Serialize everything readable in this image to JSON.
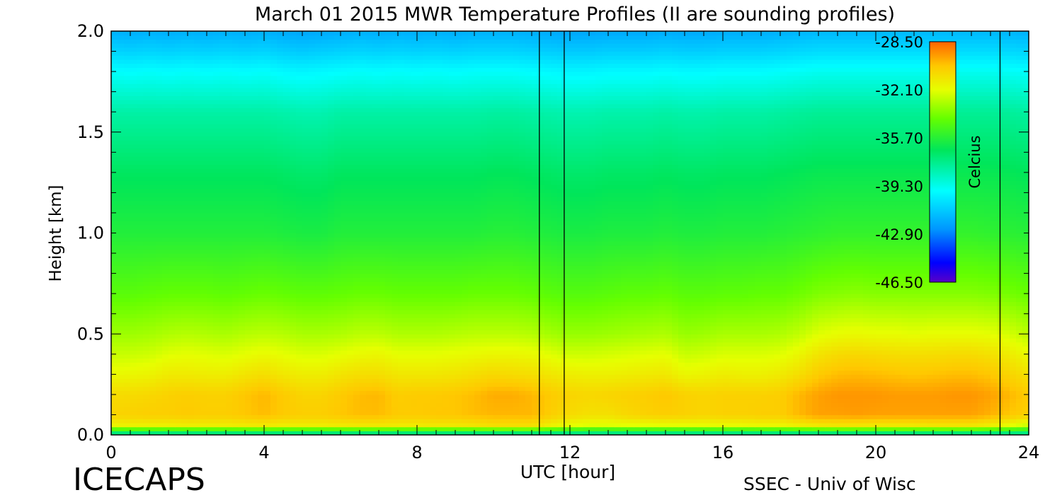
{
  "chart_data": {
    "type": "heatmap",
    "title": "March 01 2015 MWR Temperature Profiles (II are sounding profiles)",
    "xlabel": "UTC [hour]",
    "ylabel": "Height [km]",
    "xlim": [
      0,
      24
    ],
    "ylim": [
      0,
      2
    ],
    "x_ticks": [
      "0",
      "4",
      "8",
      "12",
      "16",
      "20",
      "24"
    ],
    "y_ticks": [
      "0.0",
      "0.5",
      "1.0",
      "1.5",
      "2.0"
    ],
    "colorbar": {
      "label": "Celcius",
      "range": [
        -46.5,
        -28.5
      ],
      "ticks": [
        "-28.50",
        "-32.10",
        "-35.70",
        "-39.30",
        "-42.90",
        "-46.50"
      ]
    },
    "sounding_profiles_utc": [
      11.2,
      11.85,
      23.25
    ],
    "x": [
      0,
      0.5,
      1,
      1.5,
      2,
      2.5,
      3,
      3.5,
      4,
      4.5,
      5,
      5.5,
      6,
      6.5,
      7,
      7.5,
      8,
      8.5,
      9,
      9.5,
      10,
      10.5,
      11,
      11.5,
      12,
      12.5,
      13,
      13.5,
      14,
      14.5,
      15,
      15.5,
      16,
      16.5,
      17,
      17.5,
      18,
      18.5,
      19,
      19.5,
      20,
      20.5,
      21,
      21.5,
      22,
      22.5,
      23,
      23.5,
      24
    ],
    "y": [
      0,
      0.05,
      0.1,
      0.2,
      0.3,
      0.4,
      0.5,
      0.7,
      1.0,
      1.3,
      1.6,
      1.8,
      1.9,
      2.0
    ],
    "temperature_by_height_celsius": [
      [
        -38.5,
        -38.5,
        -38.5,
        -38.5,
        -38.5,
        -38.5,
        -38.5,
        -38.5,
        -38.5,
        -38.5,
        -38.5,
        -38.5,
        -38.5,
        -38.5,
        -38.5,
        -38.5,
        -38.5,
        -38.5,
        -38.5,
        -38.5,
        -38.5,
        -38.5,
        -38.5,
        -38.5,
        -38.5,
        -38.5,
        -38.5,
        -38.5,
        -38.5,
        -38.5,
        -38.5,
        -38.5,
        -38.5,
        -38.5,
        -38.5,
        -38.5,
        -38.5,
        -38.5,
        -38.5,
        -38.5,
        -38.5,
        -38.5,
        -38.5,
        -38.5,
        -38.5,
        -38.5,
        -38.5,
        -38.5,
        -38.5
      ],
      [
        -31.7,
        -31.6,
        -31.6,
        -31.6,
        -31.5,
        -31.5,
        -31.5,
        -31.4,
        -31.3,
        -31.5,
        -31.5,
        -31.5,
        -31.4,
        -31.3,
        -31.3,
        -31.4,
        -31.4,
        -31.3,
        -31.3,
        -31.2,
        -31.0,
        -31.0,
        -31.0,
        -31.6,
        -32.0,
        -32.2,
        -32.2,
        -32.1,
        -32.1,
        -32.0,
        -32.0,
        -32.0,
        -31.9,
        -31.9,
        -31.8,
        -31.8,
        -31.5,
        -31.3,
        -31.2,
        -31.2,
        -31.3,
        -31.3,
        -31.3,
        -31.2,
        -31.2,
        -31.2,
        -31.5,
        -32.0,
        -32.5
      ],
      [
        -30.7,
        -30.6,
        -30.5,
        -30.5,
        -30.4,
        -30.5,
        -30.5,
        -30.3,
        -30.1,
        -30.4,
        -30.5,
        -30.5,
        -30.3,
        -30.1,
        -30.1,
        -30.4,
        -30.4,
        -30.3,
        -30.3,
        -30.1,
        -30.0,
        -30.0,
        -30.0,
        -30.5,
        -30.9,
        -31.1,
        -31.1,
        -30.8,
        -30.6,
        -30.5,
        -30.6,
        -30.7,
        -30.6,
        -30.6,
        -30.5,
        -30.5,
        -30.0,
        -29.6,
        -29.6,
        -29.5,
        -29.6,
        -29.6,
        -29.6,
        -29.6,
        -29.6,
        -29.6,
        -29.9,
        -30.3,
        -30.6
      ],
      [
        -30.9,
        -30.9,
        -30.8,
        -30.6,
        -30.5,
        -30.6,
        -30.6,
        -30.3,
        -30.0,
        -30.4,
        -30.7,
        -30.7,
        -30.4,
        -30.1,
        -30.0,
        -30.5,
        -30.4,
        -30.4,
        -30.3,
        -30.1,
        -29.8,
        -29.8,
        -30.0,
        -30.4,
        -30.7,
        -30.8,
        -30.7,
        -30.6,
        -30.5,
        -30.3,
        -30.6,
        -30.7,
        -30.6,
        -30.6,
        -30.6,
        -30.5,
        -30.0,
        -29.6,
        -29.4,
        -29.4,
        -29.4,
        -29.5,
        -29.5,
        -29.5,
        -29.4,
        -29.4,
        -29.6,
        -30.0,
        -30.4
      ],
      [
        -31.9,
        -31.8,
        -31.7,
        -31.4,
        -31.4,
        -31.5,
        -31.5,
        -31.2,
        -31.0,
        -31.3,
        -31.5,
        -31.5,
        -31.2,
        -31.0,
        -31.0,
        -31.3,
        -31.3,
        -31.3,
        -31.2,
        -31.0,
        -30.8,
        -30.9,
        -31.0,
        -31.3,
        -31.5,
        -31.6,
        -31.6,
        -31.5,
        -31.4,
        -31.3,
        -31.8,
        -31.7,
        -31.5,
        -31.6,
        -31.6,
        -31.4,
        -31.0,
        -30.4,
        -30.1,
        -30.0,
        -30.1,
        -30.2,
        -30.3,
        -30.2,
        -30.1,
        -30.1,
        -30.3,
        -30.7,
        -31.1
      ],
      [
        -32.6,
        -32.6,
        -32.5,
        -32.2,
        -32.1,
        -32.2,
        -32.3,
        -32.1,
        -31.9,
        -32.1,
        -32.3,
        -32.3,
        -32.1,
        -31.9,
        -31.8,
        -32.1,
        -32.1,
        -32.1,
        -32.0,
        -31.9,
        -31.8,
        -31.8,
        -31.9,
        -32.2,
        -32.5,
        -32.5,
        -32.4,
        -32.3,
        -32.2,
        -32.1,
        -32.6,
        -32.5,
        -32.3,
        -32.3,
        -32.3,
        -32.2,
        -31.8,
        -31.2,
        -30.9,
        -30.8,
        -30.9,
        -31.0,
        -31.0,
        -31.0,
        -30.9,
        -30.9,
        -31.1,
        -31.5,
        -31.9
      ],
      [
        -33.3,
        -33.3,
        -33.2,
        -33.0,
        -32.9,
        -33.0,
        -33.1,
        -32.9,
        -32.8,
        -32.9,
        -33.1,
        -33.1,
        -33.0,
        -32.8,
        -32.8,
        -33.0,
        -33.0,
        -33.0,
        -32.9,
        -32.8,
        -32.8,
        -32.8,
        -32.9,
        -33.2,
        -33.4,
        -33.4,
        -33.3,
        -33.2,
        -33.1,
        -33.0,
        -33.4,
        -33.3,
        -33.1,
        -33.1,
        -33.1,
        -33.0,
        -32.7,
        -32.2,
        -32.0,
        -31.9,
        -32.0,
        -32.0,
        -32.1,
        -32.0,
        -32.0,
        -32.0,
        -32.1,
        -32.4,
        -32.8
      ],
      [
        -34.5,
        -34.5,
        -34.4,
        -34.3,
        -34.3,
        -34.3,
        -34.4,
        -34.3,
        -34.2,
        -34.3,
        -34.4,
        -34.4,
        -34.3,
        -34.2,
        -34.2,
        -34.3,
        -34.3,
        -34.3,
        -34.3,
        -34.2,
        -34.2,
        -34.2,
        -34.3,
        -34.5,
        -34.6,
        -34.6,
        -34.5,
        -34.4,
        -34.4,
        -34.3,
        -34.5,
        -34.5,
        -34.4,
        -34.4,
        -34.3,
        -34.3,
        -34.1,
        -33.8,
        -33.7,
        -33.6,
        -33.7,
        -33.7,
        -33.7,
        -33.7,
        -33.7,
        -33.7,
        -33.8,
        -34.0,
        -34.2
      ],
      [
        -35.8,
        -35.8,
        -35.8,
        -35.8,
        -35.8,
        -35.8,
        -35.8,
        -35.8,
        -35.8,
        -35.9,
        -36.0,
        -36.0,
        -35.8,
        -35.8,
        -35.8,
        -35.8,
        -35.8,
        -35.8,
        -35.8,
        -35.8,
        -35.7,
        -35.7,
        -35.8,
        -35.9,
        -36.0,
        -36.0,
        -35.9,
        -35.9,
        -35.9,
        -35.8,
        -35.9,
        -35.9,
        -35.8,
        -35.8,
        -35.8,
        -35.7,
        -35.6,
        -35.5,
        -35.4,
        -35.4,
        -35.4,
        -35.4,
        -35.4,
        -35.4,
        -35.4,
        -35.4,
        -35.5,
        -35.6,
        -35.7
      ],
      [
        -36.7,
        -36.7,
        -36.7,
        -36.7,
        -36.7,
        -36.7,
        -36.7,
        -36.7,
        -36.7,
        -36.8,
        -36.9,
        -36.9,
        -36.7,
        -36.7,
        -36.7,
        -36.7,
        -36.7,
        -36.7,
        -36.7,
        -36.7,
        -36.6,
        -36.6,
        -36.7,
        -36.8,
        -36.9,
        -36.9,
        -36.8,
        -36.8,
        -36.8,
        -36.7,
        -36.8,
        -36.8,
        -36.7,
        -36.7,
        -36.7,
        -36.6,
        -36.5,
        -36.4,
        -36.4,
        -36.4,
        -36.4,
        -36.4,
        -36.4,
        -36.4,
        -36.4,
        -36.4,
        -36.4,
        -36.5,
        -36.6
      ],
      [
        -38.0,
        -38.0,
        -38.0,
        -38.0,
        -38.0,
        -38.0,
        -38.0,
        -38.0,
        -38.0,
        -38.1,
        -38.2,
        -38.2,
        -38.0,
        -38.0,
        -38.0,
        -38.0,
        -38.0,
        -38.0,
        -38.0,
        -38.0,
        -37.9,
        -37.9,
        -38.0,
        -38.1,
        -38.2,
        -38.2,
        -38.1,
        -38.1,
        -38.1,
        -38.0,
        -38.1,
        -38.1,
        -38.0,
        -38.0,
        -38.0,
        -37.9,
        -37.8,
        -37.7,
        -37.7,
        -37.7,
        -37.7,
        -37.7,
        -37.7,
        -37.7,
        -37.7,
        -37.7,
        -37.7,
        -37.8,
        -37.9
      ],
      [
        -39.6,
        -39.7,
        -39.6,
        -39.7,
        -39.6,
        -39.7,
        -39.6,
        -39.7,
        -39.6,
        -39.8,
        -39.9,
        -39.8,
        -39.7,
        -39.6,
        -39.7,
        -39.6,
        -39.7,
        -39.6,
        -39.7,
        -39.6,
        -39.6,
        -39.6,
        -39.7,
        -39.8,
        -39.9,
        -39.9,
        -39.8,
        -39.8,
        -39.8,
        -39.7,
        -39.8,
        -39.8,
        -39.7,
        -39.7,
        -39.7,
        -39.6,
        -39.5,
        -39.4,
        -39.4,
        -39.4,
        -39.4,
        -39.4,
        -39.4,
        -39.4,
        -39.4,
        -39.4,
        -39.4,
        -39.5,
        -39.6
      ],
      [
        -40.8,
        -40.9,
        -40.8,
        -40.9,
        -40.8,
        -40.9,
        -40.8,
        -40.9,
        -40.8,
        -41.0,
        -41.1,
        -41.0,
        -40.9,
        -40.8,
        -40.9,
        -40.8,
        -40.9,
        -40.8,
        -40.9,
        -40.8,
        -40.8,
        -40.8,
        -40.9,
        -41.0,
        -41.1,
        -41.1,
        -41.0,
        -41.0,
        -41.0,
        -40.9,
        -41.0,
        -41.0,
        -40.9,
        -40.9,
        -40.9,
        -40.8,
        -40.7,
        -40.6,
        -40.6,
        -40.6,
        -40.6,
        -40.6,
        -40.6,
        -40.6,
        -40.6,
        -40.6,
        -40.6,
        -40.7,
        -40.8
      ],
      [
        -41.8,
        -41.9,
        -41.8,
        -41.9,
        -41.8,
        -41.9,
        -41.8,
        -41.9,
        -41.8,
        -42.0,
        -42.1,
        -42.0,
        -41.9,
        -41.8,
        -41.9,
        -41.8,
        -41.9,
        -41.8,
        -41.9,
        -41.8,
        -41.8,
        -41.8,
        -41.9,
        -42.0,
        -42.1,
        -42.1,
        -42.0,
        -42.0,
        -42.0,
        -41.9,
        -42.0,
        -42.0,
        -41.9,
        -41.9,
        -41.9,
        -41.8,
        -41.7,
        -41.6,
        -41.6,
        -41.6,
        -41.6,
        -41.6,
        -41.6,
        -41.6,
        -41.6,
        -41.6,
        -41.6,
        -41.7,
        -41.8
      ]
    ]
  },
  "footer": {
    "logo_text": "ICECAPS",
    "credit": "SSEC - Univ of Wisc"
  }
}
